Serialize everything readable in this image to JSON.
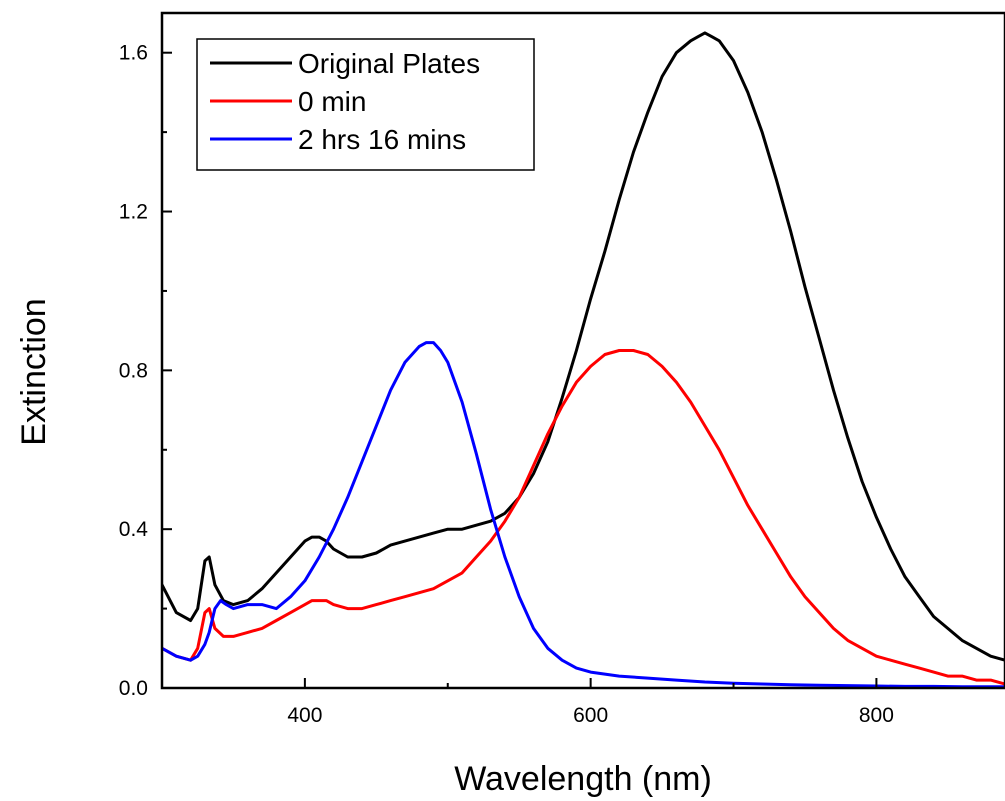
{
  "chart_data": {
    "type": "line",
    "title": "",
    "xlabel": "Wavelength (nm)",
    "ylabel": "Extinction",
    "xlim": [
      300,
      890
    ],
    "ylim": [
      0.0,
      1.7
    ],
    "x_ticks": [
      400,
      600,
      800
    ],
    "y_ticks": [
      0.0,
      0.4,
      0.8,
      1.2,
      1.6
    ],
    "y_tick_labels": [
      "0.0",
      "0.4",
      "0.8",
      "1.2",
      "1.6"
    ],
    "x_tick_labels": [
      "400",
      "600",
      "800"
    ],
    "grid": false,
    "legend_position": "top-left",
    "series": [
      {
        "name": "Original Plates",
        "color": "#000000",
        "x": [
          300,
          310,
          320,
          325,
          330,
          333,
          337,
          343,
          350,
          360,
          370,
          380,
          390,
          400,
          405,
          410,
          415,
          420,
          430,
          440,
          450,
          460,
          470,
          480,
          490,
          500,
          510,
          520,
          530,
          540,
          550,
          560,
          570,
          580,
          590,
          600,
          610,
          620,
          630,
          640,
          650,
          660,
          670,
          675,
          680,
          685,
          690,
          700,
          710,
          720,
          730,
          740,
          750,
          760,
          770,
          780,
          790,
          800,
          810,
          820,
          830,
          840,
          850,
          860,
          870,
          880,
          890
        ],
        "y": [
          0.26,
          0.19,
          0.17,
          0.2,
          0.32,
          0.33,
          0.26,
          0.22,
          0.21,
          0.22,
          0.25,
          0.29,
          0.33,
          0.37,
          0.38,
          0.38,
          0.37,
          0.35,
          0.33,
          0.33,
          0.34,
          0.36,
          0.37,
          0.38,
          0.39,
          0.4,
          0.4,
          0.41,
          0.42,
          0.44,
          0.48,
          0.54,
          0.62,
          0.73,
          0.85,
          0.98,
          1.1,
          1.23,
          1.35,
          1.45,
          1.54,
          1.6,
          1.63,
          1.64,
          1.65,
          1.64,
          1.63,
          1.58,
          1.5,
          1.4,
          1.28,
          1.15,
          1.01,
          0.88,
          0.75,
          0.63,
          0.52,
          0.43,
          0.35,
          0.28,
          0.23,
          0.18,
          0.15,
          0.12,
          0.1,
          0.08,
          0.07
        ]
      },
      {
        "name": "0 min",
        "color": "#ff0000",
        "x": [
          300,
          310,
          320,
          325,
          330,
          333,
          337,
          343,
          350,
          360,
          370,
          380,
          390,
          400,
          405,
          410,
          415,
          420,
          430,
          440,
          450,
          460,
          470,
          480,
          490,
          500,
          510,
          520,
          530,
          540,
          550,
          560,
          570,
          580,
          590,
          600,
          610,
          620,
          630,
          640,
          650,
          660,
          670,
          680,
          690,
          700,
          710,
          720,
          730,
          740,
          750,
          760,
          770,
          780,
          790,
          800,
          810,
          820,
          830,
          840,
          850,
          860,
          870,
          880,
          890
        ],
        "y": [
          0.1,
          0.08,
          0.07,
          0.1,
          0.19,
          0.2,
          0.15,
          0.13,
          0.13,
          0.14,
          0.15,
          0.17,
          0.19,
          0.21,
          0.22,
          0.22,
          0.22,
          0.21,
          0.2,
          0.2,
          0.21,
          0.22,
          0.23,
          0.24,
          0.25,
          0.27,
          0.29,
          0.33,
          0.37,
          0.42,
          0.48,
          0.56,
          0.64,
          0.71,
          0.77,
          0.81,
          0.84,
          0.85,
          0.85,
          0.84,
          0.81,
          0.77,
          0.72,
          0.66,
          0.6,
          0.53,
          0.46,
          0.4,
          0.34,
          0.28,
          0.23,
          0.19,
          0.15,
          0.12,
          0.1,
          0.08,
          0.07,
          0.06,
          0.05,
          0.04,
          0.03,
          0.03,
          0.02,
          0.02,
          0.01
        ]
      },
      {
        "name": "2 hrs 16 mins",
        "color": "#0000ff",
        "x": [
          300,
          310,
          320,
          325,
          330,
          333,
          337,
          341,
          345,
          350,
          360,
          370,
          380,
          390,
          400,
          410,
          420,
          430,
          440,
          450,
          460,
          470,
          480,
          485,
          490,
          495,
          500,
          510,
          520,
          530,
          540,
          550,
          560,
          570,
          580,
          590,
          600,
          610,
          620,
          640,
          660,
          680,
          700,
          720,
          740,
          760,
          780,
          800,
          820,
          840,
          860,
          890
        ],
        "y": [
          0.1,
          0.08,
          0.07,
          0.08,
          0.11,
          0.14,
          0.2,
          0.22,
          0.21,
          0.2,
          0.21,
          0.21,
          0.2,
          0.23,
          0.27,
          0.33,
          0.4,
          0.48,
          0.57,
          0.66,
          0.75,
          0.82,
          0.86,
          0.87,
          0.87,
          0.85,
          0.82,
          0.72,
          0.59,
          0.45,
          0.33,
          0.23,
          0.15,
          0.1,
          0.07,
          0.05,
          0.04,
          0.035,
          0.03,
          0.025,
          0.02,
          0.015,
          0.012,
          0.01,
          0.008,
          0.007,
          0.006,
          0.005,
          0.004,
          0.004,
          0.003,
          0.003
        ]
      }
    ]
  }
}
